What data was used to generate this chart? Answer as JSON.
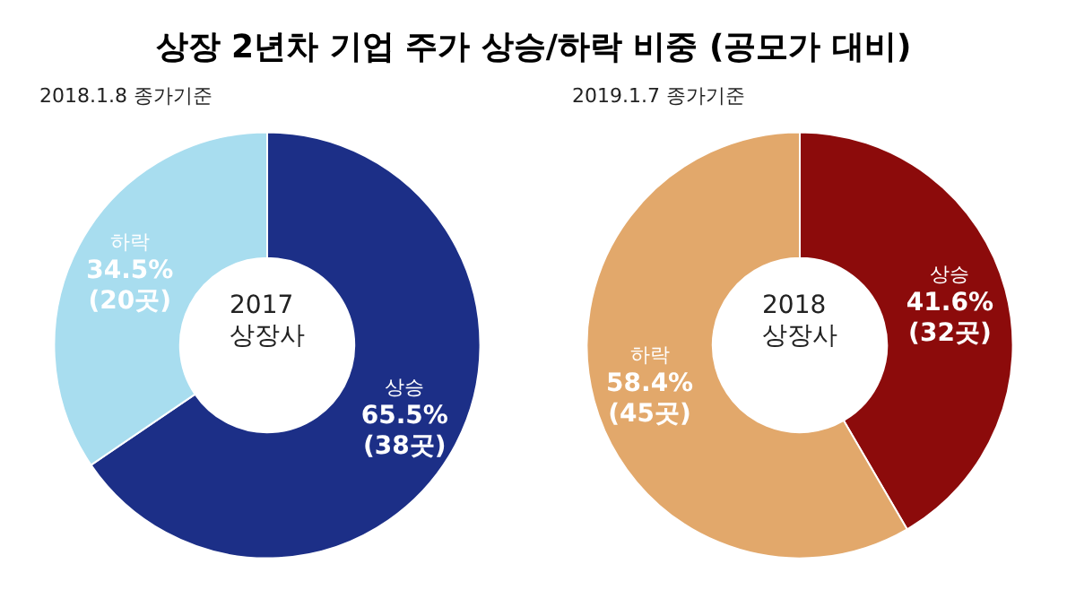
{
  "chart_data": [
    {
      "type": "donut",
      "title": "상장 2년차 기업 주가 상승/하락 비중 (공모가 대비)",
      "categories": [
        "상승",
        "하락"
      ],
      "values": [
        65.5,
        34.5
      ],
      "colors": [
        "#1c2f87",
        "#a8ddef"
      ],
      "value_labels": [
        "65.5%\n(38곳)",
        "34.5%\n(20곳)"
      ],
      "annotations": [
        "2018.1.8 종가기준",
        "2017\n상장사"
      ],
      "legend": false
    },
    {
      "type": "donut",
      "categories": [
        "상승",
        "하락"
      ],
      "values": [
        41.6,
        58.4
      ],
      "colors": [
        "#8c0b0b",
        "#e2a86b"
      ],
      "value_labels": [
        "41.6%\n(32곳)",
        "58.4%\n(45곳)"
      ],
      "annotations": [
        "2019.1.7 종가기준",
        "2018\n상장사"
      ],
      "legend": false
    }
  ]
}
